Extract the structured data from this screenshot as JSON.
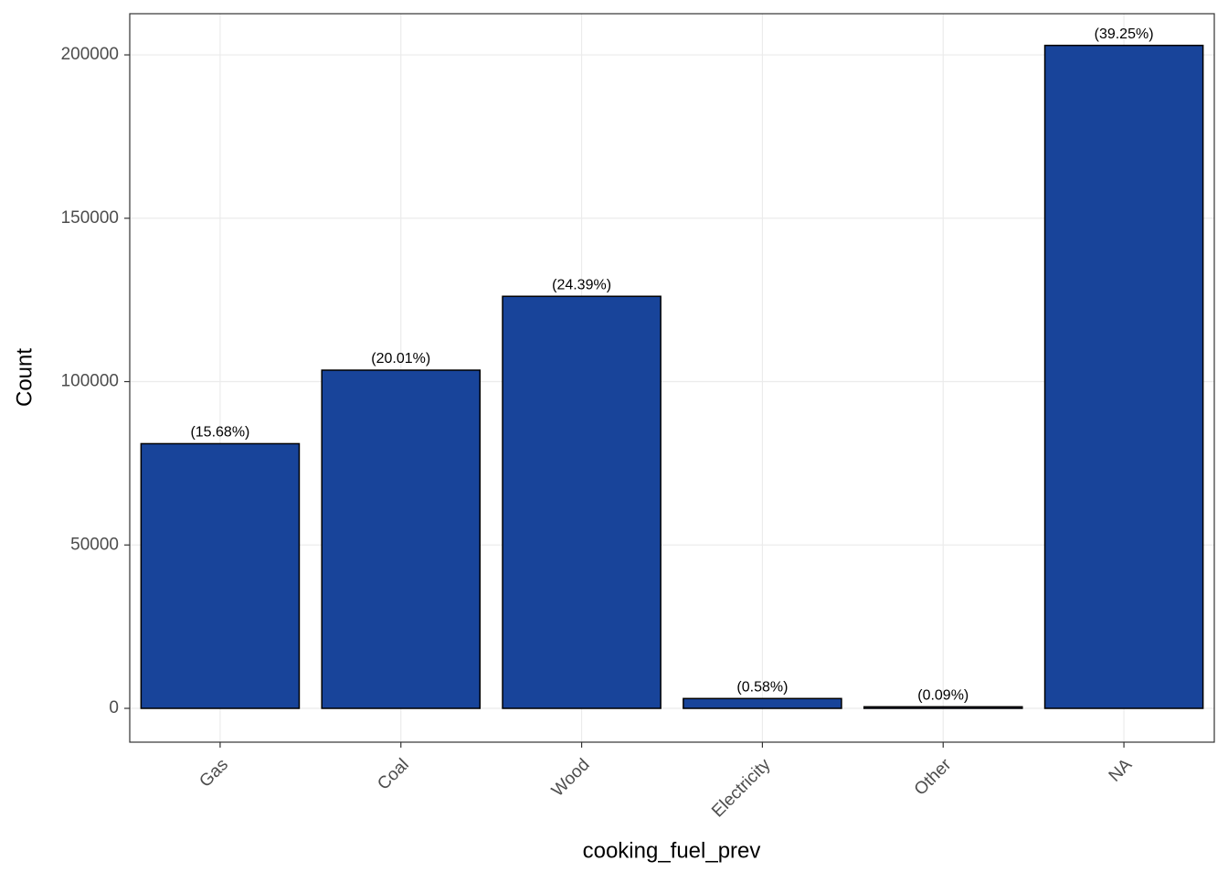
{
  "chart_data": {
    "type": "bar",
    "x_label": "cooking_fuel_prev",
    "y_label": "Count",
    "categories": [
      "Gas",
      "Coal",
      "Wood",
      "Electricity",
      "Other",
      "NA"
    ],
    "values": [
      81000,
      103500,
      126100,
      3000,
      470,
      202900
    ],
    "annotations": [
      "(15.68%)",
      "(20.01%)",
      "(24.39%)",
      "(0.58%)",
      "(0.09%)",
      "(39.25%)"
    ],
    "color": "#18449a",
    "edge_color": "#000000",
    "ylim": [
      -10350,
      212600
    ],
    "yticks": [
      0,
      50000,
      100000,
      150000,
      200000
    ],
    "grid": true
  }
}
